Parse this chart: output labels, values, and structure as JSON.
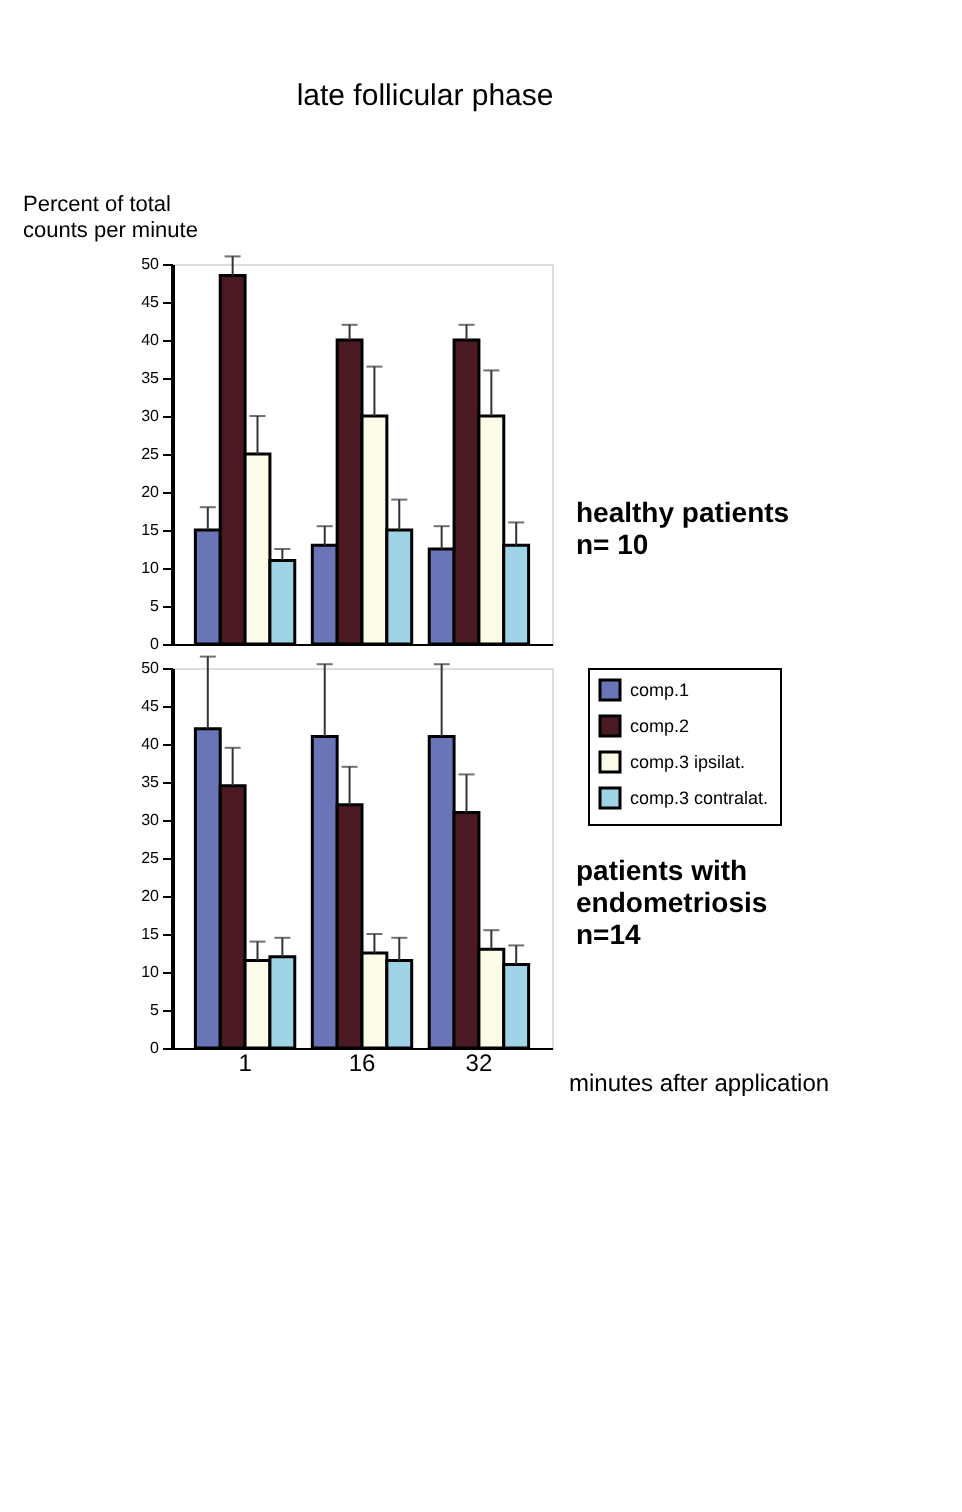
{
  "chart_data": [
    {
      "type": "bar",
      "title": "late follicular phase",
      "ylabel": "Percent of total counts per minute",
      "categories": [
        "1",
        "16",
        "32"
      ],
      "tick_labels": "y",
      "ylim": [
        0,
        50
      ],
      "yticks": [
        0,
        5,
        10,
        15,
        20,
        25,
        30,
        35,
        40,
        45,
        50
      ],
      "grid": false,
      "annotations": [
        "healthy patients\nn= 10"
      ],
      "series": [
        {
          "color": "#6a75b8",
          "values": [
            15,
            13,
            12.5
          ],
          "errors": [
            [
              15,
              18
            ],
            [
              13,
              15.5
            ],
            [
              12.5,
              15.5
            ]
          ]
        },
        {
          "color": "#4a1a22",
          "values": [
            48.5,
            40,
            40
          ],
          "errors": [
            [
              48.5,
              51
            ],
            [
              40,
              42
            ],
            [
              40,
              42
            ]
          ]
        },
        {
          "color": "#fbfbe8",
          "values": [
            25,
            30,
            30
          ],
          "errors": [
            [
              25,
              30
            ],
            [
              30,
              36.5
            ],
            [
              30,
              36
            ]
          ]
        },
        {
          "color": "#9fd3e6",
          "values": [
            11,
            15,
            13
          ],
          "errors": [
            [
              11,
              12.5
            ],
            [
              15,
              19
            ],
            [
              13,
              16
            ]
          ]
        }
      ]
    },
    {
      "type": "bar",
      "xlabel": "minutes after application",
      "categories": [
        "1",
        "16",
        "32"
      ],
      "ylim": [
        0,
        50
      ],
      "yticks": [
        0,
        5,
        10,
        15,
        20,
        25,
        30,
        35,
        40,
        45,
        50
      ],
      "grid": false,
      "legend": "right",
      "annotations": [
        "patients with\nendometriosis\nn=14"
      ],
      "series": [
        {
          "name": "comp.1",
          "color": "#6a75b8",
          "values": [
            42,
            41,
            41
          ],
          "errors": [
            [
              42,
              51.5
            ],
            [
              41,
              50.5
            ],
            [
              41,
              50.5
            ]
          ]
        },
        {
          "name": "comp.2",
          "color": "#4a1a22",
          "values": [
            34.5,
            32,
            31
          ],
          "errors": [
            [
              34.5,
              39.5
            ],
            [
              32,
              37
            ],
            [
              31,
              36
            ]
          ]
        },
        {
          "name": "comp.3 ipsilat.",
          "color": "#fbfbe8",
          "values": [
            11.5,
            12.5,
            13
          ],
          "errors": [
            [
              11.5,
              14
            ],
            [
              12.5,
              15
            ],
            [
              13,
              15.5
            ]
          ]
        },
        {
          "name": "comp.3 contralat.",
          "color": "#9fd3e6",
          "values": [
            12,
            11.5,
            11
          ],
          "errors": [
            [
              12,
              14.5
            ],
            [
              11.5,
              14.5
            ],
            [
              11,
              13.5
            ]
          ]
        }
      ]
    }
  ]
}
